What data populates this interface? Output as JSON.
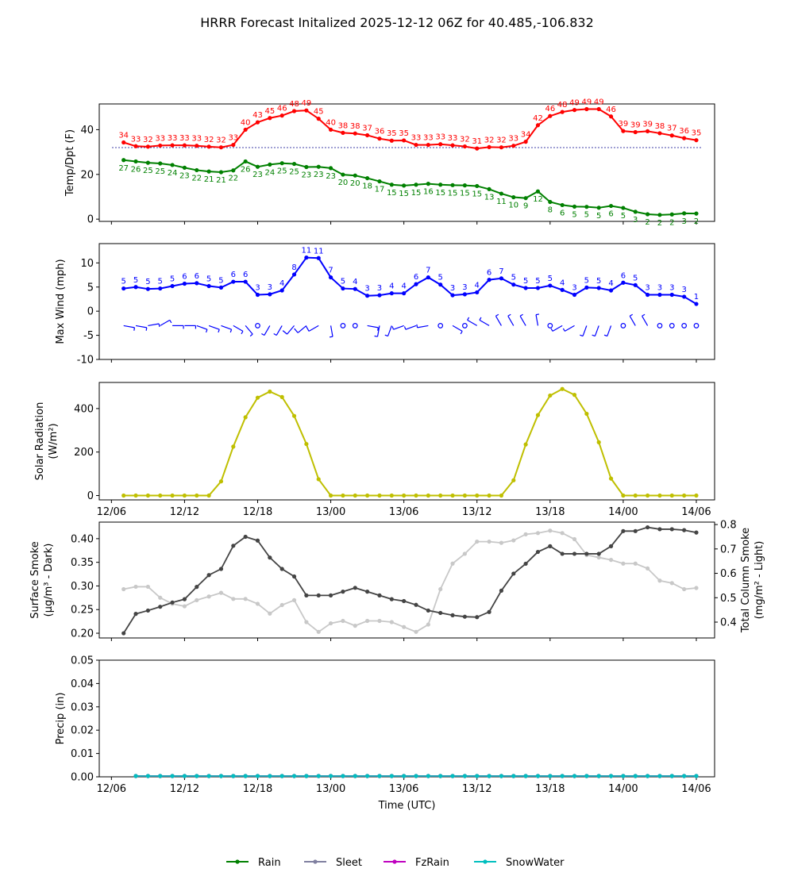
{
  "title": "HRRR Forecast Initalized 2025-12-12 06Z for 40.485,-106.832",
  "x_axis": {
    "label": "Time (UTC)",
    "tick_labels": [
      "12/06",
      "12/12",
      "12/18",
      "13/00",
      "13/06",
      "13/12",
      "13/18",
      "14/00",
      "14/06"
    ],
    "tick_hours": [
      0,
      6,
      12,
      18,
      24,
      30,
      36,
      42,
      48
    ]
  },
  "colors": {
    "temp": "#ff0000",
    "dewpoint": "#008000",
    "wind": "#0000ff",
    "solar": "#bfbf00",
    "smoke_surface": "#444444",
    "smoke_column": "#c8c8c8",
    "rain": "#008000",
    "sleet": "#8080a0",
    "fzrain": "#bf00bf",
    "snowwater": "#00bfbf",
    "freezing_line": "#00008b"
  },
  "chart_data": [
    {
      "type": "line",
      "name": "temp-dewpoint",
      "ylabel": "Temp/Dpt (F)",
      "ylim": [
        -1,
        51.5
      ],
      "yticks": [
        0,
        20,
        40
      ],
      "freezing_line": 32,
      "x_hours": [
        1,
        2,
        3,
        4,
        5,
        6,
        7,
        8,
        9,
        10,
        11,
        12,
        13,
        14,
        15,
        16,
        17,
        18,
        19,
        20,
        21,
        22,
        23,
        24,
        25,
        26,
        27,
        28,
        29,
        30,
        31,
        32,
        33,
        34,
        35,
        36,
        37,
        38,
        39,
        40,
        41,
        42,
        43,
        44,
        45,
        46,
        47,
        48
      ],
      "series": [
        {
          "name": "Temperature",
          "values": [
            34,
            33,
            32,
            33,
            33,
            33,
            33,
            32,
            32,
            33,
            40,
            43,
            45,
            46,
            48,
            49,
            45,
            40,
            38,
            38,
            37,
            36,
            35,
            35,
            33,
            33,
            33,
            33,
            32,
            31,
            32,
            32,
            33,
            34,
            42,
            46,
            48,
            49,
            49,
            49,
            46,
            39,
            39,
            39,
            38,
            37,
            36,
            35
          ],
          "plot": [
            34.3,
            32.6,
            32.4,
            32.9,
            33.0,
            33.0,
            32.8,
            32.4,
            32.1,
            33.2,
            40.0,
            43.3,
            45.2,
            46.3,
            48.3,
            48.6,
            44.9,
            40.0,
            38.6,
            38.3,
            37.5,
            36.0,
            35.1,
            35.2,
            33.2,
            33.2,
            33.5,
            33.0,
            32.5,
            31.6,
            32.2,
            32.1,
            32.8,
            34.6,
            42.0,
            46.1,
            47.9,
            48.8,
            49.2,
            49.2,
            45.9,
            39.4,
            38.9,
            39.3,
            38.4,
            37.4,
            36.2,
            35.3
          ]
        },
        {
          "name": "Dewpoint",
          "values": [
            27,
            26,
            25,
            25,
            24,
            23,
            22,
            21,
            21,
            22,
            26,
            23,
            24,
            25,
            25,
            23,
            23,
            23,
            20,
            20,
            18,
            17,
            15,
            15,
            15,
            16,
            15,
            15,
            15,
            15,
            13,
            11,
            10,
            9,
            12,
            8,
            6,
            5,
            5,
            5,
            6,
            5,
            3,
            2,
            2,
            2,
            3,
            2
          ],
          "plot": [
            26.4,
            25.8,
            25.2,
            24.9,
            24.2,
            23.0,
            21.9,
            21.3,
            21.0,
            21.8,
            25.8,
            23.4,
            24.4,
            25.0,
            24.7,
            23.3,
            23.4,
            22.8,
            19.9,
            19.5,
            18.3,
            16.9,
            15.4,
            15.0,
            15.4,
            15.8,
            15.4,
            15.2,
            15.1,
            14.8,
            13.4,
            11.4,
            9.8,
            9.4,
            12.4,
            7.7,
            6.3,
            5.6,
            5.5,
            5.1,
            5.9,
            5.0,
            3.3,
            2.2,
            1.9,
            2.1,
            2.6,
            2.5
          ]
        }
      ]
    },
    {
      "type": "line",
      "name": "max-wind",
      "ylabel": "Max Wind (mph)",
      "ylim": [
        -10,
        14
      ],
      "yticks": [
        -10,
        -5,
        0,
        5,
        10
      ],
      "x_hours": [
        1,
        2,
        3,
        4,
        5,
        6,
        7,
        8,
        9,
        10,
        11,
        12,
        13,
        14,
        15,
        16,
        17,
        18,
        19,
        20,
        21,
        22,
        23,
        24,
        25,
        26,
        27,
        28,
        29,
        30,
        31,
        32,
        33,
        34,
        35,
        36,
        37,
        38,
        39,
        40,
        41,
        42,
        43,
        44,
        45,
        46,
        47,
        48
      ],
      "series": [
        {
          "name": "Max Wind",
          "values": [
            5,
            5,
            5,
            5,
            5,
            6,
            6,
            5,
            5,
            6,
            6,
            3,
            3,
            4,
            8,
            11,
            11,
            7,
            5,
            4,
            3,
            3,
            4,
            4,
            6,
            7,
            5,
            3,
            3,
            4,
            6,
            7,
            5,
            5,
            5,
            5,
            4,
            3,
            5,
            5,
            4,
            6,
            5,
            3,
            3,
            3,
            3,
            1
          ],
          "plot": [
            4.7,
            5.0,
            4.6,
            4.7,
            5.2,
            5.7,
            5.8,
            5.2,
            4.9,
            6.1,
            6.1,
            3.4,
            3.5,
            4.3,
            7.6,
            11.1,
            11.0,
            7.0,
            4.7,
            4.6,
            3.2,
            3.3,
            3.7,
            3.7,
            5.6,
            7.0,
            5.5,
            3.3,
            3.5,
            3.9,
            6.5,
            6.8,
            5.5,
            4.8,
            4.8,
            5.3,
            4.4,
            3.4,
            4.9,
            4.8,
            4.3,
            5.9,
            5.4,
            3.4,
            3.4,
            3.4,
            3.0,
            1.5
          ]
        }
      ],
      "barb_directions_deg": [
        100,
        100,
        80,
        60,
        90,
        90,
        110,
        110,
        110,
        120,
        140,
        null,
        210,
        210,
        220,
        230,
        240,
        170,
        null,
        null,
        100,
        190,
        200,
        250,
        250,
        260,
        null,
        120,
        null,
        300,
        300,
        330,
        330,
        330,
        350,
        null,
        240,
        240,
        200,
        200,
        200,
        null,
        330,
        330,
        null,
        null,
        null,
        null
      ],
      "barb_hours": [
        1,
        2,
        3,
        4,
        5,
        6,
        7,
        8,
        9,
        10,
        11,
        12,
        13,
        14,
        15,
        16,
        17,
        18,
        19,
        20,
        21,
        22,
        23,
        24,
        25,
        26,
        27,
        28,
        29,
        30,
        31,
        32,
        33,
        34,
        35,
        36,
        37,
        38,
        39,
        40,
        41,
        42,
        43,
        44,
        45,
        46,
        47,
        48
      ]
    },
    {
      "type": "line",
      "name": "solar-radiation",
      "ylabel": "Solar Radiation (W/m²)",
      "ylim": [
        -20,
        520
      ],
      "yticks": [
        0,
        200,
        400
      ],
      "x_hours": [
        1,
        2,
        3,
        4,
        5,
        6,
        7,
        8,
        9,
        10,
        11,
        12,
        13,
        14,
        15,
        16,
        17,
        18,
        19,
        20,
        21,
        22,
        23,
        24,
        25,
        26,
        27,
        28,
        29,
        30,
        31,
        32,
        33,
        34,
        35,
        36,
        37,
        38,
        39,
        40,
        41,
        42,
        43,
        44,
        45,
        46,
        47,
        48
      ],
      "series": [
        {
          "name": "Solar Radiation",
          "values": [
            0,
            0,
            0,
            0,
            0,
            0,
            0,
            0,
            65,
            225,
            360,
            450,
            478,
            453,
            366,
            237,
            75,
            0,
            0,
            0,
            0,
            0,
            0,
            0,
            0,
            0,
            0,
            0,
            0,
            0,
            0,
            0,
            70,
            235,
            370,
            460,
            490,
            463,
            376,
            245,
            78,
            0,
            0,
            0,
            0,
            0,
            0,
            0
          ]
        }
      ]
    },
    {
      "type": "line",
      "name": "smoke",
      "ylabel": "Surface Smoke (µg/m³ - Dark)",
      "ylabel2": "Total Column Smoke (mg/m² - Light)",
      "ylim": [
        0.19,
        0.435
      ],
      "yticks": [
        0.2,
        0.25,
        0.3,
        0.35,
        0.4
      ],
      "ylim2": [
        0.335,
        0.81
      ],
      "yticks2": [
        0.4,
        0.5,
        0.6,
        0.7,
        0.8
      ],
      "x_hours": [
        1,
        2,
        3,
        4,
        5,
        6,
        7,
        8,
        9,
        10,
        11,
        12,
        13,
        14,
        15,
        16,
        17,
        18,
        19,
        20,
        21,
        22,
        23,
        24,
        25,
        26,
        27,
        28,
        29,
        30,
        31,
        32,
        33,
        34,
        35,
        36,
        37,
        38,
        39,
        40,
        41,
        42,
        43,
        44,
        45,
        46,
        47,
        48
      ],
      "series": [
        {
          "name": "Surface Smoke",
          "axis": "left",
          "values": [
            0.2,
            0.241,
            0.248,
            0.256,
            0.265,
            0.272,
            0.298,
            0.323,
            0.336,
            0.385,
            0.404,
            0.396,
            0.36,
            0.336,
            0.32,
            0.28,
            0.28,
            0.28,
            0.288,
            0.296,
            0.288,
            0.28,
            0.272,
            0.268,
            0.26,
            0.248,
            0.243,
            0.238,
            0.235,
            0.234,
            0.245,
            0.29,
            0.326,
            0.347,
            0.372,
            0.384,
            0.368,
            0.368,
            0.368,
            0.368,
            0.384,
            0.416,
            0.416,
            0.424,
            0.42,
            0.42,
            0.418,
            0.413
          ]
        },
        {
          "name": "Total Column Smoke",
          "axis": "right",
          "values": [
            0.535,
            0.545,
            0.545,
            0.5,
            0.475,
            0.465,
            0.49,
            0.505,
            0.52,
            0.495,
            0.495,
            0.475,
            0.435,
            0.47,
            0.49,
            0.4,
            0.36,
            0.395,
            0.405,
            0.385,
            0.405,
            0.405,
            0.4,
            0.38,
            0.36,
            0.39,
            0.535,
            0.64,
            0.68,
            0.73,
            0.73,
            0.725,
            0.735,
            0.76,
            0.765,
            0.775,
            0.765,
            0.74,
            0.675,
            0.665,
            0.655,
            0.64,
            0.64,
            0.62,
            0.57,
            0.56,
            0.535,
            0.54
          ]
        }
      ]
    },
    {
      "type": "line",
      "name": "precip",
      "ylabel": "Precip (in)",
      "ylim": [
        0,
        0.05
      ],
      "yticks": [
        0.0,
        0.01,
        0.02,
        0.03,
        0.04,
        0.05
      ],
      "ytick_labels": [
        "0.00",
        "0.01",
        "0.02",
        "0.03",
        "0.04",
        "0.05"
      ],
      "x_hours": [
        2,
        3,
        4,
        5,
        6,
        7,
        8,
        9,
        10,
        11,
        12,
        13,
        14,
        15,
        16,
        17,
        18,
        19,
        20,
        21,
        22,
        23,
        24,
        25,
        26,
        27,
        28,
        29,
        30,
        31,
        32,
        33,
        34,
        35,
        36,
        37,
        38,
        39,
        40,
        41,
        42,
        43,
        44,
        45,
        46,
        47,
        48
      ],
      "series": [
        {
          "name": "Rain",
          "values": [
            0,
            0,
            0,
            0,
            0,
            0,
            0,
            0,
            0,
            0,
            0,
            0,
            0,
            0,
            0,
            0,
            0,
            0,
            0,
            0,
            0,
            0,
            0,
            0,
            0,
            0,
            0,
            0,
            0,
            0,
            0,
            0,
            0,
            0,
            0,
            0,
            0,
            0,
            0,
            0,
            0,
            0,
            0,
            0,
            0,
            0,
            0
          ]
        },
        {
          "name": "Sleet",
          "values": [
            0,
            0,
            0,
            0,
            0,
            0,
            0,
            0,
            0,
            0,
            0,
            0,
            0,
            0,
            0,
            0,
            0,
            0,
            0,
            0,
            0,
            0,
            0,
            0,
            0,
            0,
            0,
            0,
            0,
            0,
            0,
            0,
            0,
            0,
            0,
            0,
            0,
            0,
            0,
            0,
            0,
            0,
            0,
            0,
            0,
            0,
            0
          ]
        },
        {
          "name": "FzRain",
          "values": [
            0,
            0,
            0,
            0,
            0,
            0,
            0,
            0,
            0,
            0,
            0,
            0,
            0,
            0,
            0,
            0,
            0,
            0,
            0,
            0,
            0,
            0,
            0,
            0,
            0,
            0,
            0,
            0,
            0,
            0,
            0,
            0,
            0,
            0,
            0,
            0,
            0,
            0,
            0,
            0,
            0,
            0,
            0,
            0,
            0,
            0,
            0
          ]
        },
        {
          "name": "SnowWater",
          "values": [
            0,
            0,
            0,
            0,
            0,
            0,
            0,
            0,
            0,
            0,
            0,
            0,
            0,
            0,
            0,
            0,
            0,
            0,
            0,
            0,
            0,
            0,
            0,
            0,
            0,
            0,
            0,
            0,
            0,
            0,
            0,
            0,
            0,
            0,
            0,
            0,
            0,
            0,
            0,
            0,
            0,
            0,
            0,
            0,
            0,
            0,
            0
          ]
        }
      ]
    }
  ],
  "legend": {
    "items": [
      "Rain",
      "Sleet",
      "FzRain",
      "SnowWater"
    ],
    "placement": "bottom-center"
  }
}
